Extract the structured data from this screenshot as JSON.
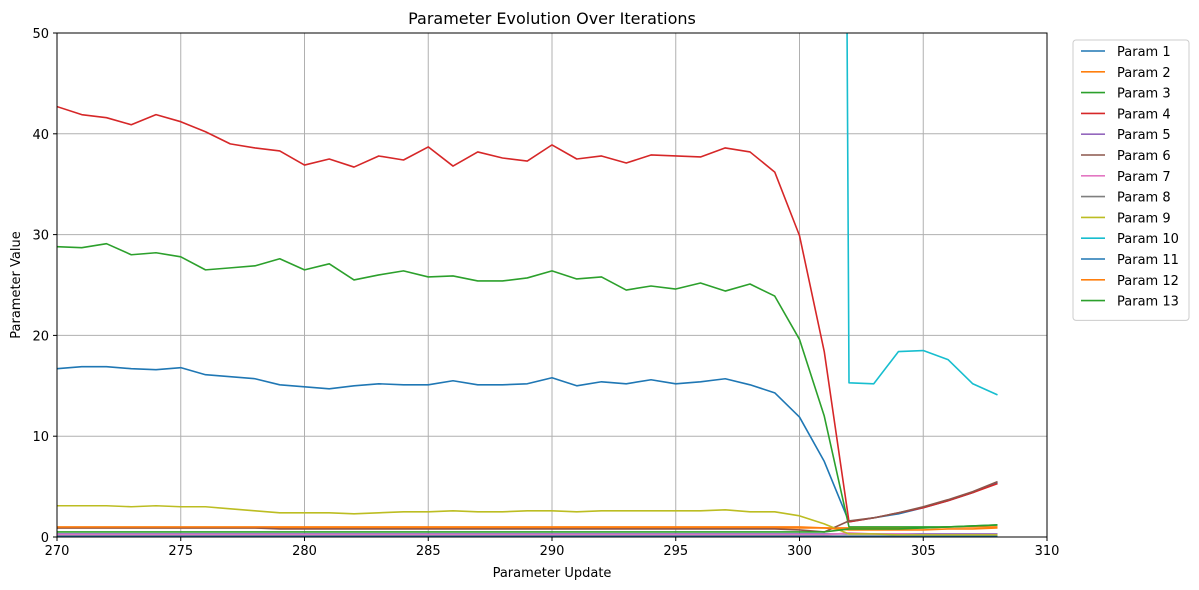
{
  "chart_data": {
    "type": "line",
    "title": "Parameter Evolution Over Iterations",
    "xlabel": "Parameter Update",
    "ylabel": "Parameter Value",
    "xlim": [
      270,
      310
    ],
    "ylim": [
      0,
      50
    ],
    "xticks": [
      270,
      275,
      280,
      285,
      290,
      295,
      300,
      305,
      310
    ],
    "yticks": [
      0,
      10,
      20,
      30,
      40,
      50
    ],
    "grid": true,
    "legend_position": "outside-top-right",
    "x": [
      270,
      271,
      272,
      273,
      274,
      275,
      276,
      277,
      278,
      279,
      280,
      281,
      282,
      283,
      284,
      285,
      286,
      287,
      288,
      289,
      290,
      291,
      292,
      293,
      294,
      295,
      296,
      297,
      298,
      299,
      300,
      301,
      302,
      303,
      304,
      305,
      306,
      307,
      308
    ],
    "series": [
      {
        "name": "Param 1",
        "color": "#1f77b4",
        "values": [
          16.7,
          16.9,
          16.9,
          16.7,
          16.6,
          16.8,
          16.1,
          15.9,
          15.7,
          15.1,
          14.9,
          14.7,
          15.0,
          15.2,
          15.1,
          15.1,
          15.5,
          15.1,
          15.1,
          15.2,
          15.8,
          15.0,
          15.4,
          15.2,
          15.6,
          15.2,
          15.4,
          15.7,
          15.1,
          14.3,
          11.9,
          7.5,
          1.5,
          1.9,
          2.3,
          2.9,
          3.6,
          4.4,
          5.4
        ]
      },
      {
        "name": "Param 2",
        "color": "#ff7f0e",
        "values": [
          0.9,
          0.9,
          0.9,
          0.9,
          0.9,
          0.9,
          0.9,
          0.9,
          0.9,
          0.9,
          0.9,
          0.9,
          0.9,
          0.9,
          0.9,
          0.9,
          0.9,
          0.9,
          0.9,
          0.9,
          0.9,
          0.9,
          0.9,
          0.9,
          0.9,
          0.9,
          0.9,
          0.9,
          0.9,
          0.9,
          0.9,
          0.9,
          0.9,
          0.9,
          0.9,
          0.9,
          1.0,
          1.0,
          1.0
        ]
      },
      {
        "name": "Param 3",
        "color": "#2ca02c",
        "values": [
          28.8,
          28.7,
          29.1,
          28.0,
          28.2,
          27.8,
          26.5,
          26.7,
          26.9,
          27.6,
          26.5,
          27.1,
          25.5,
          26.0,
          26.4,
          25.8,
          25.9,
          25.4,
          25.4,
          25.7,
          26.4,
          25.6,
          25.8,
          24.5,
          24.9,
          24.6,
          25.2,
          24.4,
          25.1,
          23.9,
          19.6,
          12.0,
          1.0,
          1.0,
          1.0,
          1.0,
          1.0,
          1.1,
          1.2
        ]
      },
      {
        "name": "Param 4",
        "color": "#d62728",
        "values": [
          42.7,
          41.9,
          41.6,
          40.9,
          41.9,
          41.2,
          40.2,
          39.0,
          38.6,
          38.3,
          36.9,
          37.5,
          36.7,
          37.8,
          37.4,
          38.7,
          36.8,
          38.2,
          37.6,
          37.3,
          38.9,
          37.5,
          37.8,
          37.1,
          37.9,
          37.8,
          37.7,
          38.6,
          38.2,
          36.2,
          29.9,
          18.4,
          1.5,
          1.9,
          2.4,
          2.9,
          3.6,
          4.4,
          5.3
        ]
      },
      {
        "name": "Param 5",
        "color": "#9467bd",
        "values": [
          0.3,
          0.3,
          0.3,
          0.3,
          0.3,
          0.3,
          0.3,
          0.3,
          0.3,
          0.3,
          0.3,
          0.3,
          0.3,
          0.3,
          0.3,
          0.3,
          0.3,
          0.3,
          0.3,
          0.3,
          0.3,
          0.3,
          0.3,
          0.3,
          0.3,
          0.3,
          0.3,
          0.3,
          0.3,
          0.3,
          0.3,
          0.3,
          0.3,
          0.3,
          0.3,
          0.3,
          0.3,
          0.3,
          0.3
        ]
      },
      {
        "name": "Param 6",
        "color": "#8c564b",
        "values": [
          0.9,
          0.9,
          0.9,
          0.9,
          0.9,
          0.9,
          0.9,
          0.9,
          0.9,
          0.8,
          0.8,
          0.8,
          0.8,
          0.8,
          0.8,
          0.8,
          0.8,
          0.8,
          0.8,
          0.8,
          0.8,
          0.8,
          0.8,
          0.8,
          0.8,
          0.8,
          0.8,
          0.8,
          0.8,
          0.8,
          0.7,
          0.5,
          1.6,
          1.9,
          2.4,
          3.0,
          3.7,
          4.5,
          5.5
        ]
      },
      {
        "name": "Param 7",
        "color": "#e377c2",
        "values": [
          0.2,
          0.2,
          0.2,
          0.2,
          0.2,
          0.2,
          0.2,
          0.2,
          0.2,
          0.2,
          0.2,
          0.2,
          0.2,
          0.2,
          0.2,
          0.2,
          0.2,
          0.2,
          0.2,
          0.2,
          0.2,
          0.2,
          0.2,
          0.2,
          0.2,
          0.2,
          0.2,
          0.2,
          0.2,
          0.2,
          0.2,
          0.2,
          0.4,
          0.3,
          0.3,
          0.2,
          0.2,
          0.2,
          0.2
        ]
      },
      {
        "name": "Param 8",
        "color": "#7f7f7f",
        "values": [
          0.1,
          0.1,
          0.1,
          0.1,
          0.1,
          0.1,
          0.1,
          0.1,
          0.1,
          0.1,
          0.1,
          0.1,
          0.1,
          0.1,
          0.1,
          0.1,
          0.1,
          0.1,
          0.1,
          0.1,
          0.1,
          0.1,
          0.1,
          0.1,
          0.1,
          0.1,
          0.1,
          0.1,
          0.1,
          0.1,
          0.1,
          0.1,
          0.1,
          0.1,
          0.1,
          0.1,
          0.1,
          0.1,
          0.1
        ]
      },
      {
        "name": "Param 9",
        "color": "#bcbd22",
        "values": [
          3.1,
          3.1,
          3.1,
          3.0,
          3.1,
          3.0,
          3.0,
          2.8,
          2.6,
          2.4,
          2.4,
          2.4,
          2.3,
          2.4,
          2.5,
          2.5,
          2.6,
          2.5,
          2.5,
          2.6,
          2.6,
          2.5,
          2.6,
          2.6,
          2.6,
          2.6,
          2.6,
          2.7,
          2.5,
          2.5,
          2.1,
          1.3,
          0.3,
          0.3,
          0.2,
          0.2,
          0.2,
          0.2,
          0.2
        ]
      },
      {
        "name": "Param 10",
        "color": "#17becf",
        "values": [
          null,
          null,
          null,
          null,
          null,
          null,
          null,
          null,
          null,
          null,
          null,
          null,
          null,
          null,
          null,
          null,
          null,
          null,
          null,
          null,
          null,
          null,
          null,
          null,
          null,
          null,
          null,
          null,
          null,
          null,
          null,
          null,
          15.3,
          15.2,
          18.4,
          18.5,
          17.6,
          15.2,
          14.1
        ],
        "offscale_start": [
          301.9,
          50
        ]
      },
      {
        "name": "Param 11",
        "color": "#1f77b4",
        "values": [
          0.05,
          0.05,
          0.05,
          0.05,
          0.05,
          0.05,
          0.05,
          0.05,
          0.05,
          0.05,
          0.05,
          0.05,
          0.05,
          0.05,
          0.05,
          0.05,
          0.05,
          0.05,
          0.05,
          0.05,
          0.05,
          0.05,
          0.05,
          0.05,
          0.05,
          0.05,
          0.05,
          0.05,
          0.05,
          0.05,
          0.05,
          0.05,
          0.05,
          0.05,
          0.05,
          0.05,
          0.05,
          0.05,
          0.05
        ]
      },
      {
        "name": "Param 12",
        "color": "#ff7f0e",
        "values": [
          1.0,
          1.0,
          1.0,
          1.0,
          1.0,
          1.0,
          1.0,
          1.0,
          1.0,
          1.0,
          1.0,
          1.0,
          1.0,
          1.0,
          1.0,
          1.0,
          1.0,
          1.0,
          1.0,
          1.0,
          1.0,
          1.0,
          1.0,
          1.0,
          1.0,
          1.0,
          1.0,
          1.0,
          1.0,
          1.0,
          1.0,
          0.9,
          0.7,
          0.7,
          0.7,
          0.7,
          0.8,
          0.8,
          0.9
        ]
      },
      {
        "name": "Param 13",
        "color": "#2ca02c",
        "values": [
          0.5,
          0.5,
          0.5,
          0.5,
          0.5,
          0.5,
          0.5,
          0.5,
          0.5,
          0.5,
          0.5,
          0.5,
          0.5,
          0.5,
          0.5,
          0.5,
          0.5,
          0.5,
          0.5,
          0.5,
          0.5,
          0.5,
          0.5,
          0.5,
          0.5,
          0.5,
          0.5,
          0.5,
          0.5,
          0.5,
          0.5,
          0.5,
          0.8,
          0.8,
          0.8,
          0.9,
          1.0,
          1.1,
          1.2
        ]
      }
    ]
  }
}
